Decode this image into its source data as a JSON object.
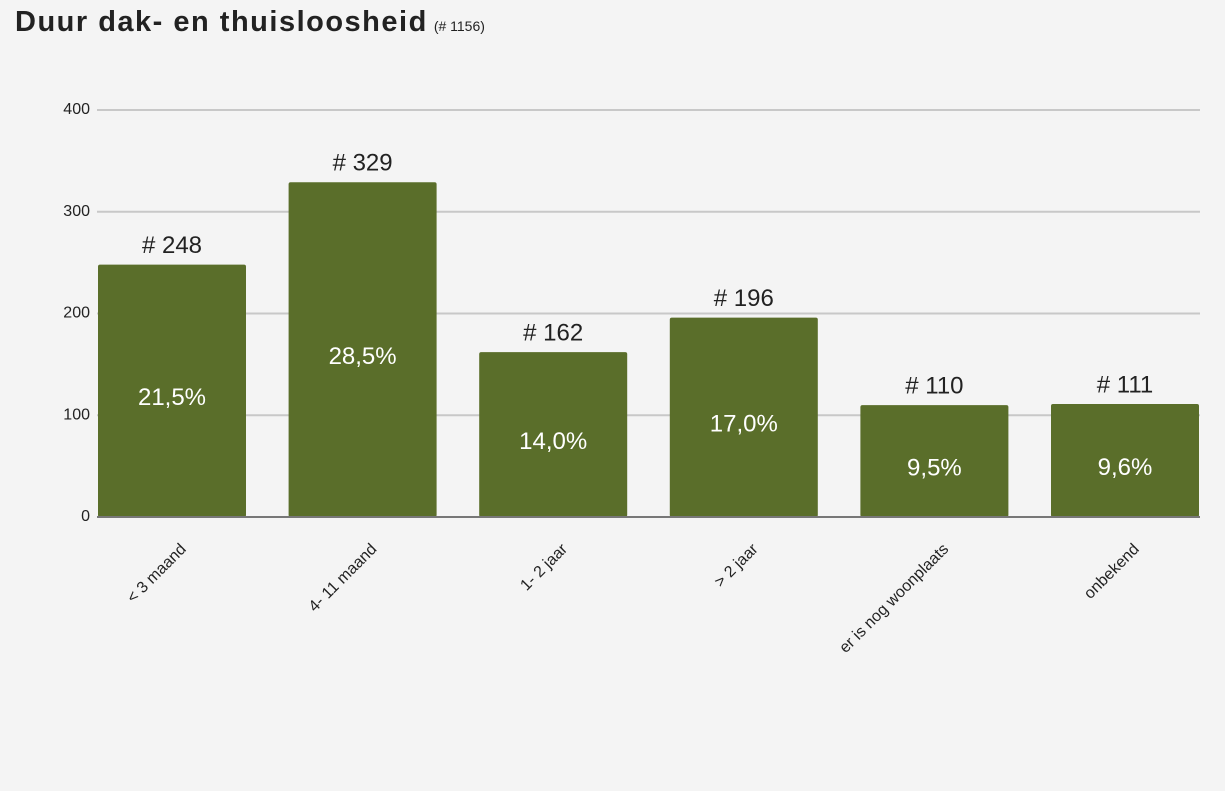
{
  "chart_data": {
    "type": "bar",
    "title": "Duur dak- en thuisloosheid",
    "subtitle": "(# 1156)",
    "categories": [
      "< 3 maand",
      "4- 11 maand",
      "1- 2 jaar",
      "> 2 jaar",
      "er is nog woonplaats",
      "onbekend"
    ],
    "values": [
      248,
      329,
      162,
      196,
      110,
      111
    ],
    "value_labels": [
      "# 248",
      "# 329",
      "# 162",
      "# 196",
      "# 110",
      "# 111"
    ],
    "percentages": [
      21.5,
      28.5,
      14.0,
      17.0,
      9.5,
      9.6
    ],
    "percentage_labels": [
      "21,5%",
      "28,5%",
      "14,0%",
      "17,0%",
      "9,5%",
      "9,6%"
    ],
    "color": "#5a6e2a",
    "ylim": [
      0,
      400
    ],
    "yticks": [
      0,
      100,
      200,
      300,
      400
    ],
    "grid": true
  }
}
